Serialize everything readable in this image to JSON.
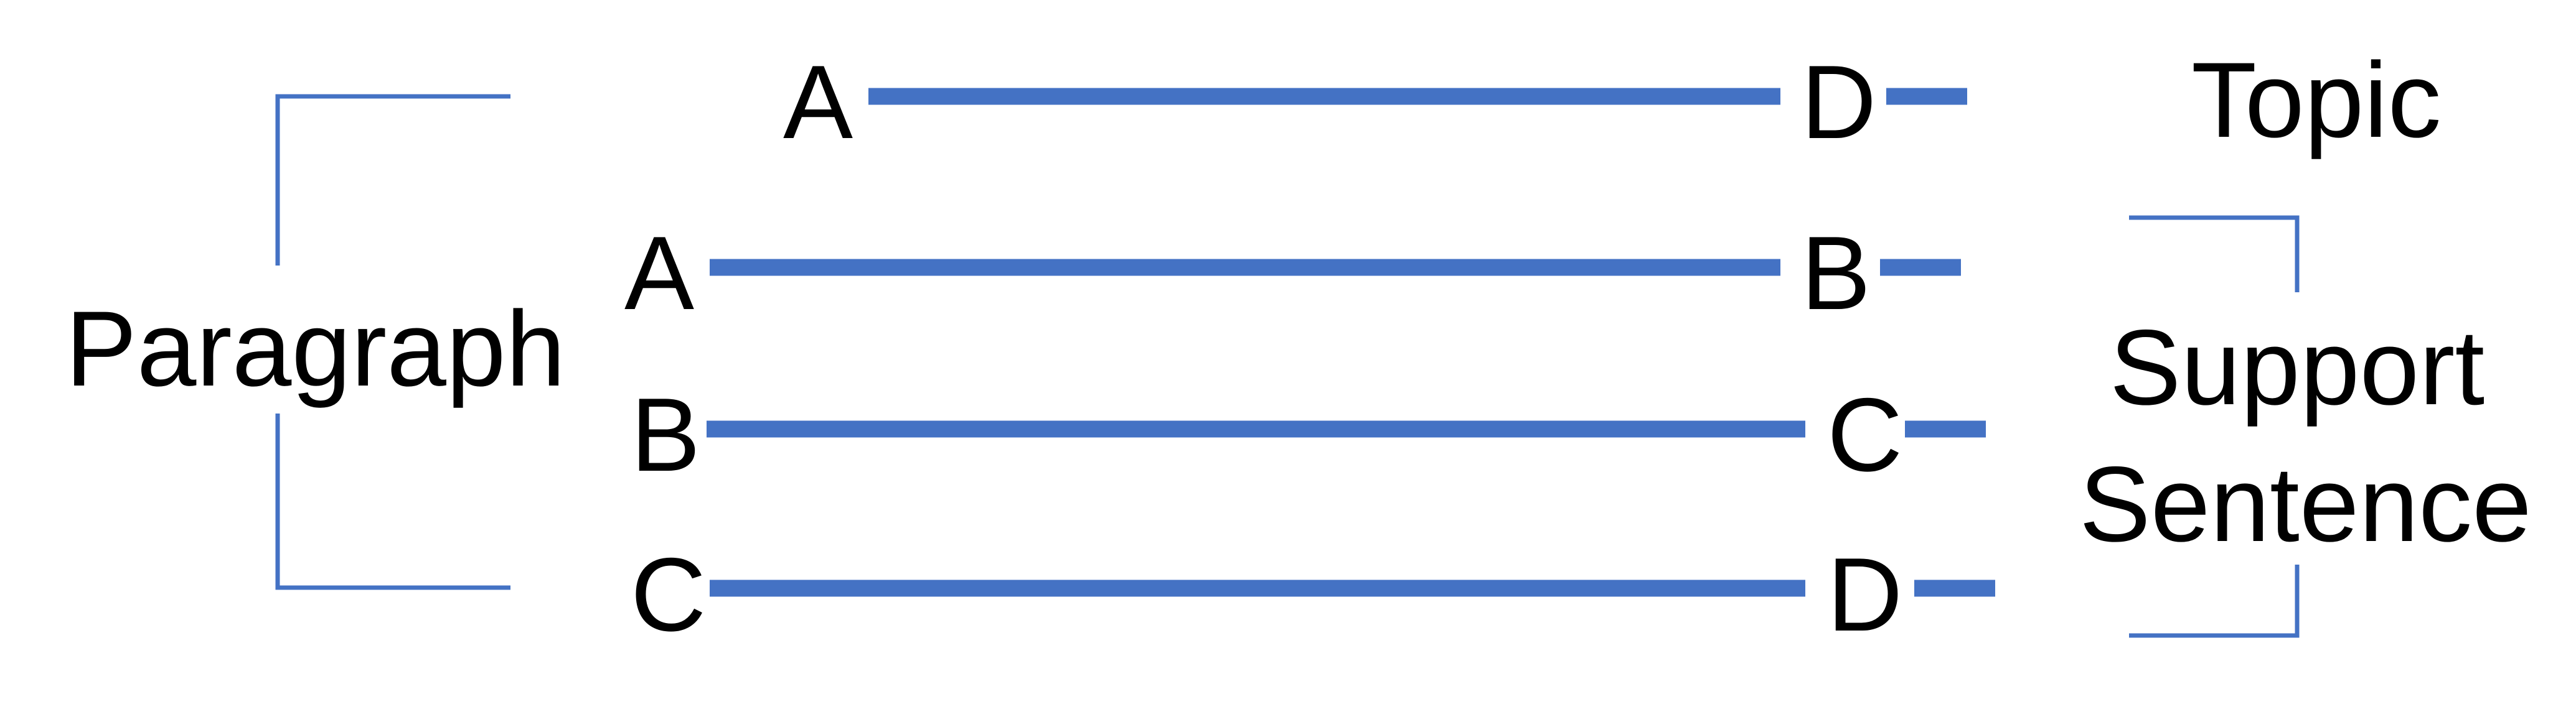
{
  "accent_color": "#4472C4",
  "labels": {
    "paragraph": "Paragraph",
    "topic": "Topic",
    "support_line1": "Support",
    "support_line2": "Sentence"
  },
  "rows": [
    {
      "start": "A",
      "end": "D"
    },
    {
      "start": "A",
      "end": "B"
    },
    {
      "start": "B",
      "end": "C"
    },
    {
      "start": "C",
      "end": "D"
    }
  ]
}
